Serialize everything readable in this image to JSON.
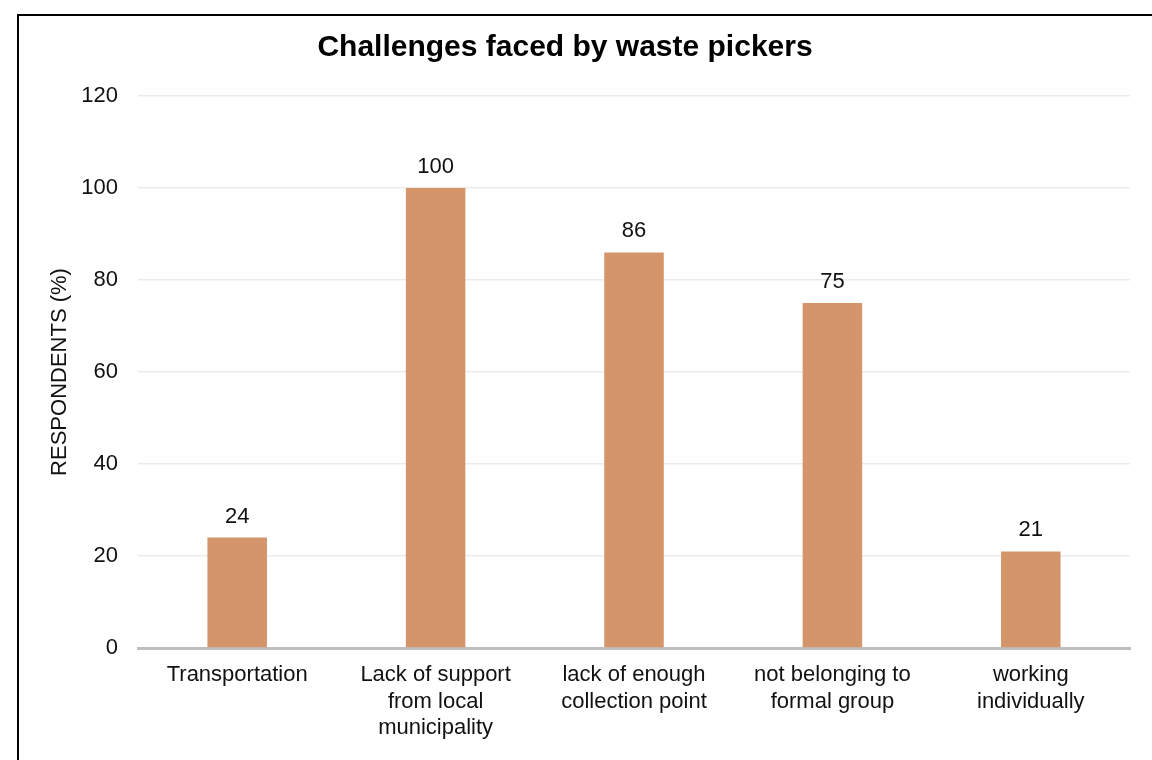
{
  "chart_data": {
    "type": "bar",
    "title": "Challenges faced by waste pickers",
    "ylabel": "RESPONDENTS (%)",
    "categories": [
      "Transportation",
      "Lack of support from local municipality",
      "lack of enough collection point",
      "not belonging to formal group",
      "working individually"
    ],
    "values": [
      24,
      100,
      86,
      75,
      21
    ],
    "color": "#d4956a",
    "ylim": [
      0,
      120
    ],
    "yticks": [
      0,
      20,
      40,
      60,
      80,
      100,
      120
    ],
    "grid": "y",
    "data_labels": true
  }
}
